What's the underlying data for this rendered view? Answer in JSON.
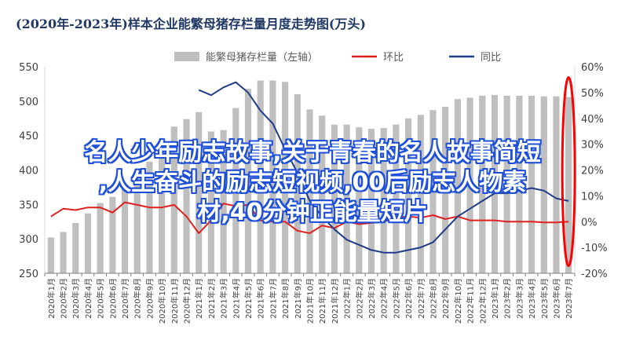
{
  "chart_data": {
    "type": "bar+line",
    "title": "(2020年-2023年)样本企业能繁母猪存栏量月度走势图(万头)",
    "legend": [
      "能繁母猪存栏量（左轴）",
      "环比",
      "同比"
    ],
    "legend_position": "top",
    "categories": [
      "2020年1月",
      "2020年2月",
      "2020年3月",
      "2020年4月",
      "2020年5月",
      "2020年6月",
      "2020年7月",
      "2020年8月",
      "2020年9月",
      "2020年10月",
      "2020年11月",
      "2020年12月",
      "2021年1月",
      "2021年2月",
      "2021年3月",
      "2021年4月",
      "2021年5月",
      "2021年6月",
      "2021年7月",
      "2021年8月",
      "2021年9月",
      "2021年10月",
      "2021年11月",
      "2021年12月",
      "2022年1月",
      "2022年2月",
      "2022年3月",
      "2022年4月",
      "2022年5月",
      "2022年6月",
      "2022年7月",
      "2022年8月",
      "2022年9月",
      "2022年10月",
      "2022年11月",
      "2022年12月",
      "2023年1月",
      "2023年2月",
      "2023年3月",
      "2023年4月",
      "2023年5月",
      "2023年6月",
      "2023年7月"
    ],
    "left_axis": {
      "ylim": [
        250,
        550
      ],
      "ticks": [
        250,
        300,
        350,
        400,
        450,
        500,
        550
      ]
    },
    "right_axis": {
      "ylim": [
        -20,
        60
      ],
      "ticks": [
        "-20%",
        "-10%",
        "0%",
        "10%",
        "20%",
        "30%",
        "40%",
        "50%",
        "60%"
      ]
    },
    "series": [
      {
        "name": "能繁母猪存栏量（左轴）",
        "type": "bar",
        "axis": "left",
        "color": "#bfbfbf",
        "values": [
          302,
          310,
          323,
          337,
          352,
          361,
          374,
          392,
          412,
          432,
          463,
          474,
          484,
          456,
          458,
          490,
          518,
          530,
          530,
          528,
          510,
          488,
          479,
          466,
          466,
          462,
          460,
          461,
          466,
          475,
          480,
          487,
          492,
          503,
          505,
          508,
          509,
          508,
          508,
          508,
          507,
          507,
          506
        ]
      },
      {
        "name": "环比",
        "type": "line",
        "axis": "right",
        "color": "#e02020",
        "values": [
          2,
          5,
          4.5,
          5.5,
          5.5,
          3.5,
          7.5,
          6.5,
          5.5,
          5.5,
          6.5,
          2,
          -4.5,
          0.5,
          7,
          6,
          6.5,
          0.5,
          0,
          0,
          -3.5,
          -4.5,
          -1.5,
          -2.5,
          0,
          -1,
          -0.5,
          0,
          1.5,
          2,
          1.5,
          2.5,
          1,
          2,
          0.5,
          0.5,
          0.5,
          0,
          0,
          0,
          -0.3,
          -0.3,
          0
        ]
      },
      {
        "name": "同比",
        "type": "line",
        "axis": "right",
        "color": "#1f3c88",
        "values": [
          null,
          null,
          null,
          null,
          null,
          null,
          null,
          null,
          null,
          null,
          null,
          null,
          51,
          49,
          52,
          54,
          50,
          43,
          38,
          28,
          19,
          8,
          2,
          -3,
          -7,
          -9,
          -11,
          -12,
          -12,
          -11,
          -10,
          -8,
          -3,
          2,
          5,
          8,
          11,
          11,
          12,
          13,
          12,
          9,
          8
        ]
      }
    ],
    "annotations": [
      {
        "type": "red-ellipse",
        "around": "2023年7月"
      }
    ]
  },
  "overlay_text": [
    "名人少年励志故事,关于青春的名人故事简短",
    ",人生奋斗的励志短视频,00后励志人物素",
    "材,40分钟正能量短片"
  ]
}
